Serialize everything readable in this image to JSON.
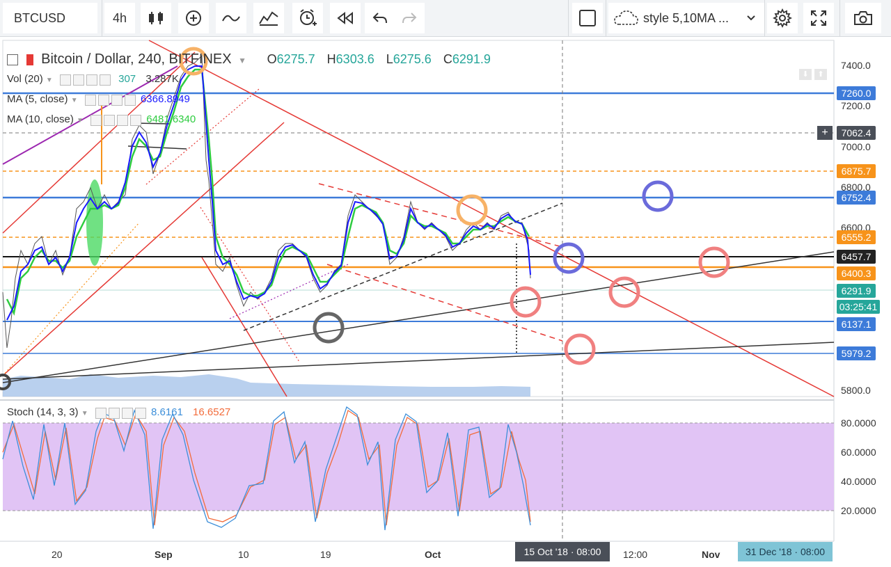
{
  "toolbar": {
    "symbol": "BTCUSD",
    "interval": "4h",
    "style_label": "style 5,10MA ...",
    "icons": [
      "candles-icon",
      "add-indicator-icon",
      "line-tool-icon",
      "pattern-icon",
      "alert-icon",
      "replay-icon",
      "undo-icon",
      "redo-icon",
      "fullscreen-square-icon",
      "cloud-icon",
      "settings-icon",
      "expand-icon",
      "camera-icon"
    ]
  },
  "legend": {
    "title": "Bitcoin / Dollar, 240, BITFINEX",
    "o_label": "O",
    "o": "6275.7",
    "h_label": "H",
    "h": "6303.6",
    "l_label": "L",
    "l": "6275.6",
    "c_label": "C",
    "c": "6291.9",
    "vol_label": "Vol (20)",
    "vol_value_1": "307",
    "vol_value_2": "3.287K",
    "ma5_label": "MA (5, close)",
    "ma5_value": "6366.8949",
    "ma10_label": "MA (10, close)",
    "ma10_value": "6481.6340",
    "stoch_label": "Stoch (14, 3, 3)",
    "stoch_k": "8.6161",
    "stoch_d": "16.6527"
  },
  "price_axis": {
    "ticks": [
      "7400.0",
      "7200.0",
      "7000.0",
      "6800.0",
      "6600.0",
      "5800.0"
    ],
    "tags": [
      {
        "value": "7260.0",
        "color": "#3d7bd9"
      },
      {
        "value": "7062.4",
        "color": "#4a4f58"
      },
      {
        "value": "6875.7",
        "color": "#f7931a"
      },
      {
        "value": "6752.4",
        "color": "#3d7bd9"
      },
      {
        "value": "6555.2",
        "color": "#f7931a"
      },
      {
        "value": "6457.7",
        "color": "#222222"
      },
      {
        "value": "6400.3",
        "color": "#f7931a"
      },
      {
        "value": "6291.9",
        "color": "#26a69a"
      },
      {
        "value": "03:25:41",
        "color": "#26a69a"
      },
      {
        "value": "6137.1",
        "color": "#3d7bd9"
      },
      {
        "value": "5979.2",
        "color": "#3d7bd9"
      }
    ]
  },
  "stoch_axis": {
    "ticks": [
      "80.0000",
      "60.0000",
      "40.0000",
      "20.0000"
    ]
  },
  "time_axis": {
    "labels": [
      "20",
      "Sep",
      "10",
      "19",
      "Oct",
      "12:00",
      "Nov"
    ],
    "crosshair_time": "15 Oct '18 · 08:00",
    "end_time": "31 Dec '18 · 08:00"
  },
  "colors": {
    "up": "#26a69a",
    "down": "#ef5350",
    "ma5": "#1a1aff",
    "ma10": "#2ecc40",
    "stoch_bg": "#e1c4f5"
  }
}
